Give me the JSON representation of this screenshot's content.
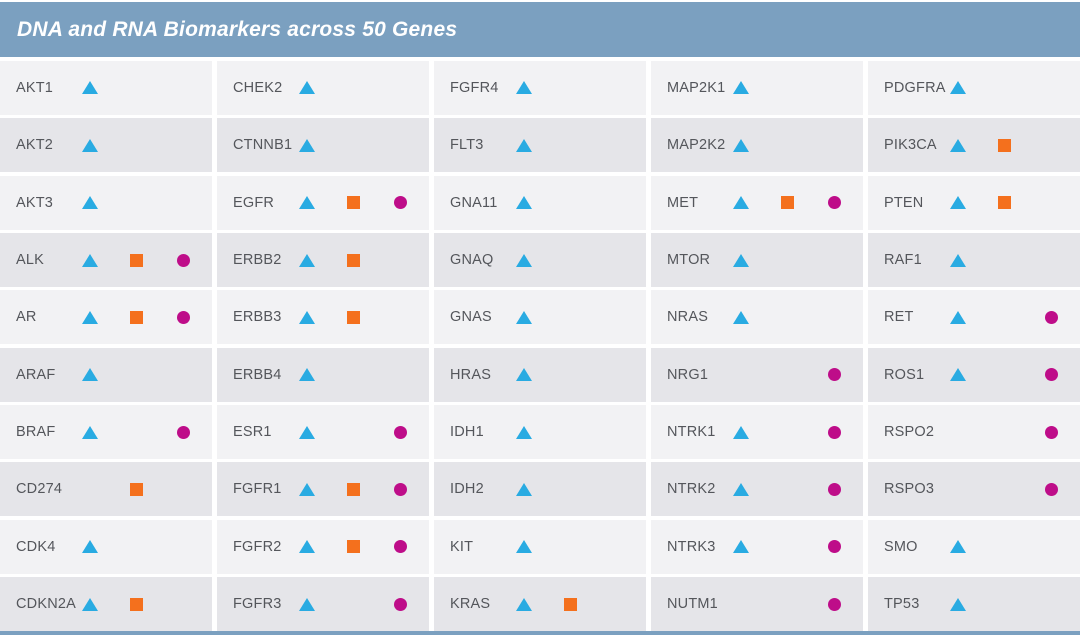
{
  "header": {
    "title": "DNA and RNA Biomarkers across 50 Genes"
  },
  "colors": {
    "header_bg": "#7BA0C0",
    "row_light": "#F2F2F4",
    "row_dark": "#E5E5E9",
    "gene_text": "#54565B",
    "triangle": "#29ABE2",
    "square": "#F4701D",
    "circle": "#BE0D89"
  },
  "marker_types": [
    "triangle",
    "square",
    "circle"
  ],
  "columns": [
    [
      {
        "gene": "AKT1",
        "markers": [
          "triangle"
        ]
      },
      {
        "gene": "AKT2",
        "markers": [
          "triangle"
        ]
      },
      {
        "gene": "AKT3",
        "markers": [
          "triangle"
        ]
      },
      {
        "gene": "ALK",
        "markers": [
          "triangle",
          "square",
          "circle"
        ]
      },
      {
        "gene": "AR",
        "markers": [
          "triangle",
          "square",
          "circle"
        ]
      },
      {
        "gene": "ARAF",
        "markers": [
          "triangle"
        ]
      },
      {
        "gene": "BRAF",
        "markers": [
          "triangle",
          "circle"
        ]
      },
      {
        "gene": "CD274",
        "markers": [
          "square"
        ]
      },
      {
        "gene": "CDK4",
        "markers": [
          "triangle"
        ]
      },
      {
        "gene": "CDKN2A",
        "markers": [
          "triangle",
          "square"
        ]
      }
    ],
    [
      {
        "gene": "CHEK2",
        "markers": [
          "triangle"
        ]
      },
      {
        "gene": "CTNNB1",
        "markers": [
          "triangle"
        ]
      },
      {
        "gene": "EGFR",
        "markers": [
          "triangle",
          "square",
          "circle"
        ]
      },
      {
        "gene": "ERBB2",
        "markers": [
          "triangle",
          "square"
        ]
      },
      {
        "gene": "ERBB3",
        "markers": [
          "triangle",
          "square"
        ]
      },
      {
        "gene": "ERBB4",
        "markers": [
          "triangle"
        ]
      },
      {
        "gene": "ESR1",
        "markers": [
          "triangle",
          "circle"
        ]
      },
      {
        "gene": "FGFR1",
        "markers": [
          "triangle",
          "square",
          "circle"
        ]
      },
      {
        "gene": "FGFR2",
        "markers": [
          "triangle",
          "square",
          "circle"
        ]
      },
      {
        "gene": "FGFR3",
        "markers": [
          "triangle",
          "circle"
        ]
      }
    ],
    [
      {
        "gene": "FGFR4",
        "markers": [
          "triangle"
        ]
      },
      {
        "gene": "FLT3",
        "markers": [
          "triangle"
        ]
      },
      {
        "gene": "GNA11",
        "markers": [
          "triangle"
        ]
      },
      {
        "gene": "GNAQ",
        "markers": [
          "triangle"
        ]
      },
      {
        "gene": "GNAS",
        "markers": [
          "triangle"
        ]
      },
      {
        "gene": "HRAS",
        "markers": [
          "triangle"
        ]
      },
      {
        "gene": "IDH1",
        "markers": [
          "triangle"
        ]
      },
      {
        "gene": "IDH2",
        "markers": [
          "triangle"
        ]
      },
      {
        "gene": "KIT",
        "markers": [
          "triangle"
        ]
      },
      {
        "gene": "KRAS",
        "markers": [
          "triangle",
          "square"
        ]
      }
    ],
    [
      {
        "gene": "MAP2K1",
        "markers": [
          "triangle"
        ]
      },
      {
        "gene": "MAP2K2",
        "markers": [
          "triangle"
        ]
      },
      {
        "gene": "MET",
        "markers": [
          "triangle",
          "square",
          "circle"
        ]
      },
      {
        "gene": "MTOR",
        "markers": [
          "triangle"
        ]
      },
      {
        "gene": "NRAS",
        "markers": [
          "triangle"
        ]
      },
      {
        "gene": "NRG1",
        "markers": [
          "circle"
        ]
      },
      {
        "gene": "NTRK1",
        "markers": [
          "triangle",
          "circle"
        ]
      },
      {
        "gene": "NTRK2",
        "markers": [
          "triangle",
          "circle"
        ]
      },
      {
        "gene": "NTRK3",
        "markers": [
          "triangle",
          "circle"
        ]
      },
      {
        "gene": "NUTM1",
        "markers": [
          "circle"
        ]
      }
    ],
    [
      {
        "gene": "PDGFRA",
        "markers": [
          "triangle"
        ]
      },
      {
        "gene": "PIK3CA",
        "markers": [
          "triangle",
          "square"
        ]
      },
      {
        "gene": "PTEN",
        "markers": [
          "triangle",
          "square"
        ]
      },
      {
        "gene": "RAF1",
        "markers": [
          "triangle"
        ]
      },
      {
        "gene": "RET",
        "markers": [
          "triangle",
          "circle"
        ]
      },
      {
        "gene": "ROS1",
        "markers": [
          "triangle",
          "circle"
        ]
      },
      {
        "gene": "RSPO2",
        "markers": [
          "circle"
        ]
      },
      {
        "gene": "RSPO3",
        "markers": [
          "circle"
        ]
      },
      {
        "gene": "SMO",
        "markers": [
          "triangle"
        ]
      },
      {
        "gene": "TP53",
        "markers": [
          "triangle"
        ]
      }
    ]
  ]
}
